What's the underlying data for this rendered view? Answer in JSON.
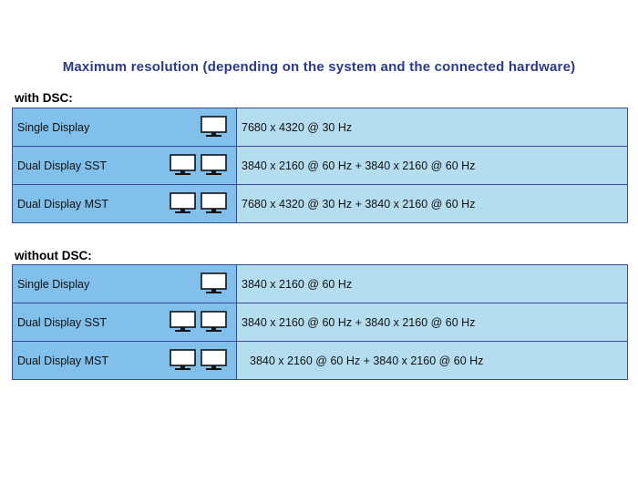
{
  "title": "Maximum resolution (depending on the system and the connected hardware)",
  "sections": [
    {
      "label": "with DSC:",
      "rows": [
        {
          "mode": "Single Display",
          "monitors": 1,
          "icon": "monitor-icon",
          "resolution": "7680 x 4320 @ 30 Hz"
        },
        {
          "mode": "Dual Display SST",
          "monitors": 2,
          "icon": "monitor-icon",
          "resolution": "3840 x 2160 @ 60 Hz + 3840 x 2160 @ 60 Hz"
        },
        {
          "mode": "Dual Display MST",
          "monitors": 2,
          "icon": "monitor-icon",
          "resolution": "7680 x 4320 @ 30 Hz + 3840 x 2160 @ 60 Hz"
        }
      ]
    },
    {
      "label": "without DSC:",
      "rows": [
        {
          "mode": "Single Display",
          "monitors": 1,
          "icon": "monitor-icon",
          "resolution": "3840 x 2160 @ 60 Hz"
        },
        {
          "mode": "Dual Display SST",
          "monitors": 2,
          "icon": "monitor-icon",
          "resolution": "3840 x 2160 @ 60 Hz + 3840 x 2160 @ 60 Hz"
        },
        {
          "mode": "Dual Display MST",
          "monitors": 2,
          "icon": "monitor-icon",
          "resolution": "3840 x 2160 @ 60 Hz + 3840 x 2160 @ 60 Hz"
        }
      ]
    }
  ],
  "colors": {
    "title": "#2b3a87",
    "label_cell": "#80c0ea",
    "value_cell": "#b5ddf0",
    "border": "#3a4a9a"
  }
}
